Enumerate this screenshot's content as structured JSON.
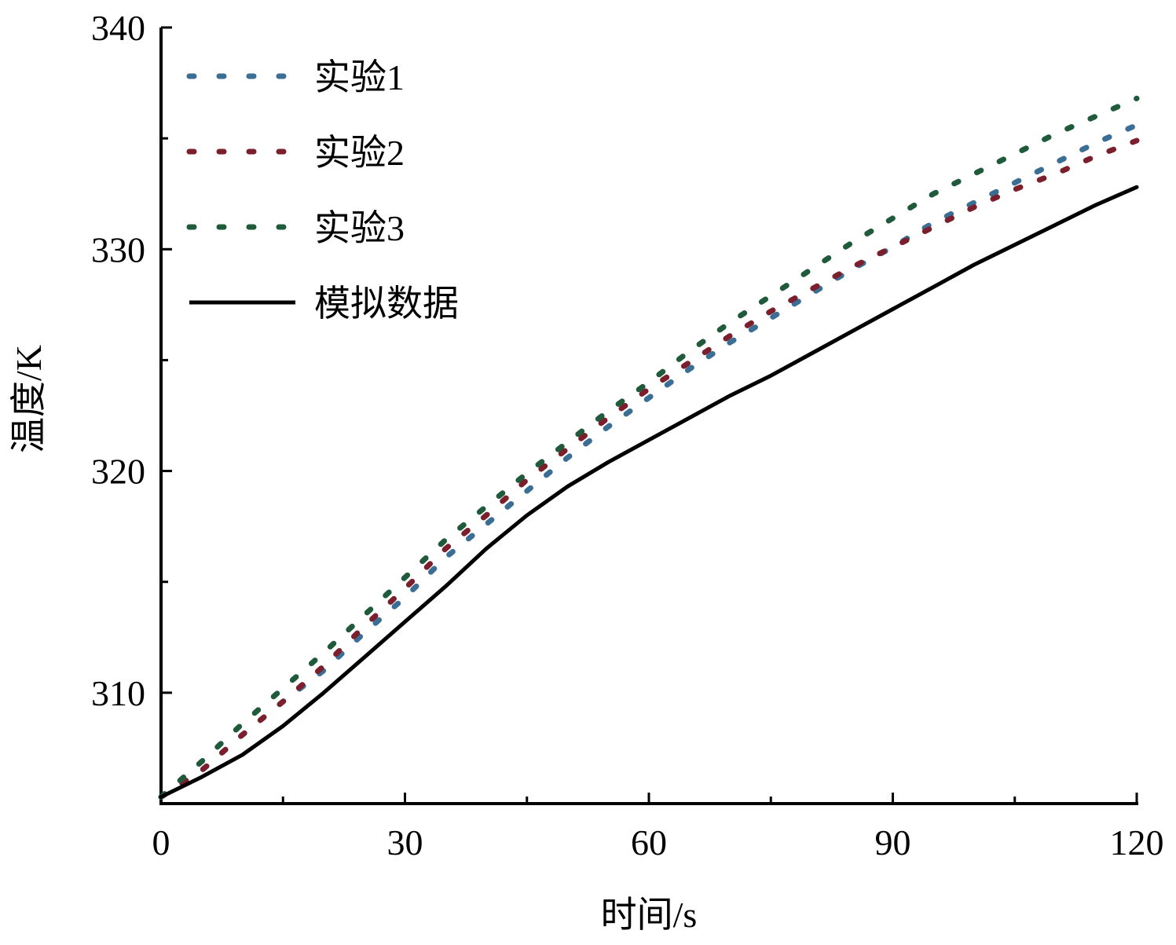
{
  "chart_data": {
    "type": "line",
    "xlabel": "时间/s",
    "ylabel": "温度/K",
    "xlim": [
      0,
      120
    ],
    "ylim": [
      305,
      340
    ],
    "xticks": [
      0,
      30,
      60,
      90,
      120
    ],
    "yticks": [
      310,
      320,
      330,
      340
    ],
    "grid": false,
    "legend_position": "top-left",
    "x": [
      0,
      5,
      10,
      15,
      20,
      25,
      30,
      35,
      40,
      45,
      50,
      55,
      60,
      65,
      70,
      75,
      80,
      85,
      90,
      95,
      100,
      105,
      110,
      115,
      120
    ],
    "series": [
      {
        "name": "实验1",
        "style": "dotted",
        "color": "#3b6e94",
        "values": [
          305.3,
          306.5,
          308.1,
          309.6,
          311.0,
          312.7,
          314.3,
          316.1,
          317.6,
          319.1,
          320.6,
          322.0,
          323.3,
          324.6,
          325.8,
          326.9,
          328.0,
          329.1,
          330.1,
          331.2,
          332.1,
          333.0,
          333.9,
          334.8,
          335.6
        ]
      },
      {
        "name": "实验2",
        "style": "dotted",
        "color": "#7a1f2b",
        "values": [
          305.3,
          306.5,
          308.1,
          309.6,
          311.2,
          313.0,
          314.7,
          316.5,
          318.0,
          319.6,
          321.0,
          322.4,
          323.7,
          324.9,
          326.1,
          327.2,
          328.2,
          329.2,
          330.1,
          331.0,
          331.9,
          332.7,
          333.4,
          334.2,
          334.9
        ]
      },
      {
        "name": "实验3",
        "style": "dotted",
        "color": "#1f5a3b",
        "values": [
          305.3,
          306.9,
          308.6,
          310.2,
          311.8,
          313.5,
          315.2,
          316.9,
          318.4,
          319.9,
          321.3,
          322.7,
          324.0,
          325.4,
          326.7,
          327.9,
          329.1,
          330.3,
          331.4,
          332.5,
          333.4,
          334.3,
          335.2,
          336.0,
          336.8
        ]
      },
      {
        "name": "模拟数据",
        "style": "solid",
        "color": "#000000",
        "values": [
          305.3,
          306.2,
          307.2,
          308.5,
          310.0,
          311.6,
          313.2,
          314.8,
          316.5,
          318.0,
          319.3,
          320.4,
          321.4,
          322.4,
          323.4,
          324.3,
          325.3,
          326.3,
          327.3,
          328.3,
          329.3,
          330.2,
          331.1,
          332.0,
          332.8
        ]
      }
    ]
  }
}
